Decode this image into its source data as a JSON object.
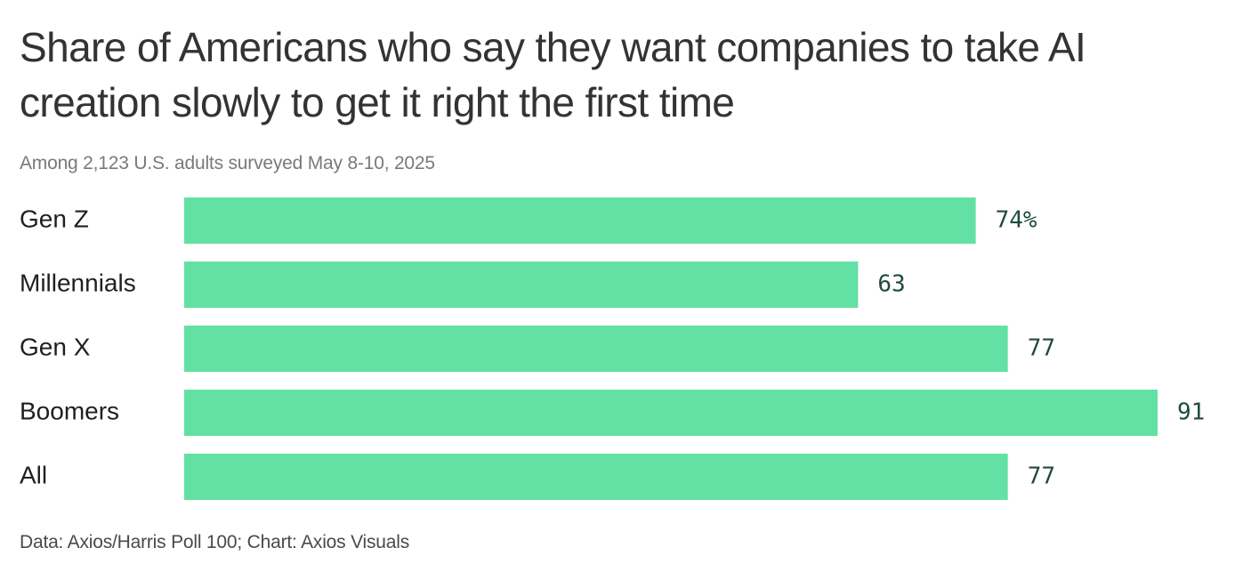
{
  "title": "Share of Americans who say they want companies to take AI creation slowly to get it right the first time",
  "subtitle": "Among 2,123 U.S. adults surveyed May 8-10, 2025",
  "footer": "Data: Axios/Harris Poll 100; Chart: Axios Visuals",
  "colors": {
    "bar": "#63e0a3",
    "value_text": "#1f4d3a"
  },
  "chart_data": {
    "type": "bar",
    "orientation": "horizontal",
    "categories": [
      "Gen Z",
      "Millennials",
      "Gen X",
      "Boomers",
      "All"
    ],
    "values": [
      74,
      63,
      77,
      91,
      77
    ],
    "value_labels": [
      "74%",
      "63",
      "77",
      "91",
      "77"
    ],
    "unit": "%",
    "xlim": [
      0,
      100
    ],
    "grid": false,
    "legend": "none"
  }
}
